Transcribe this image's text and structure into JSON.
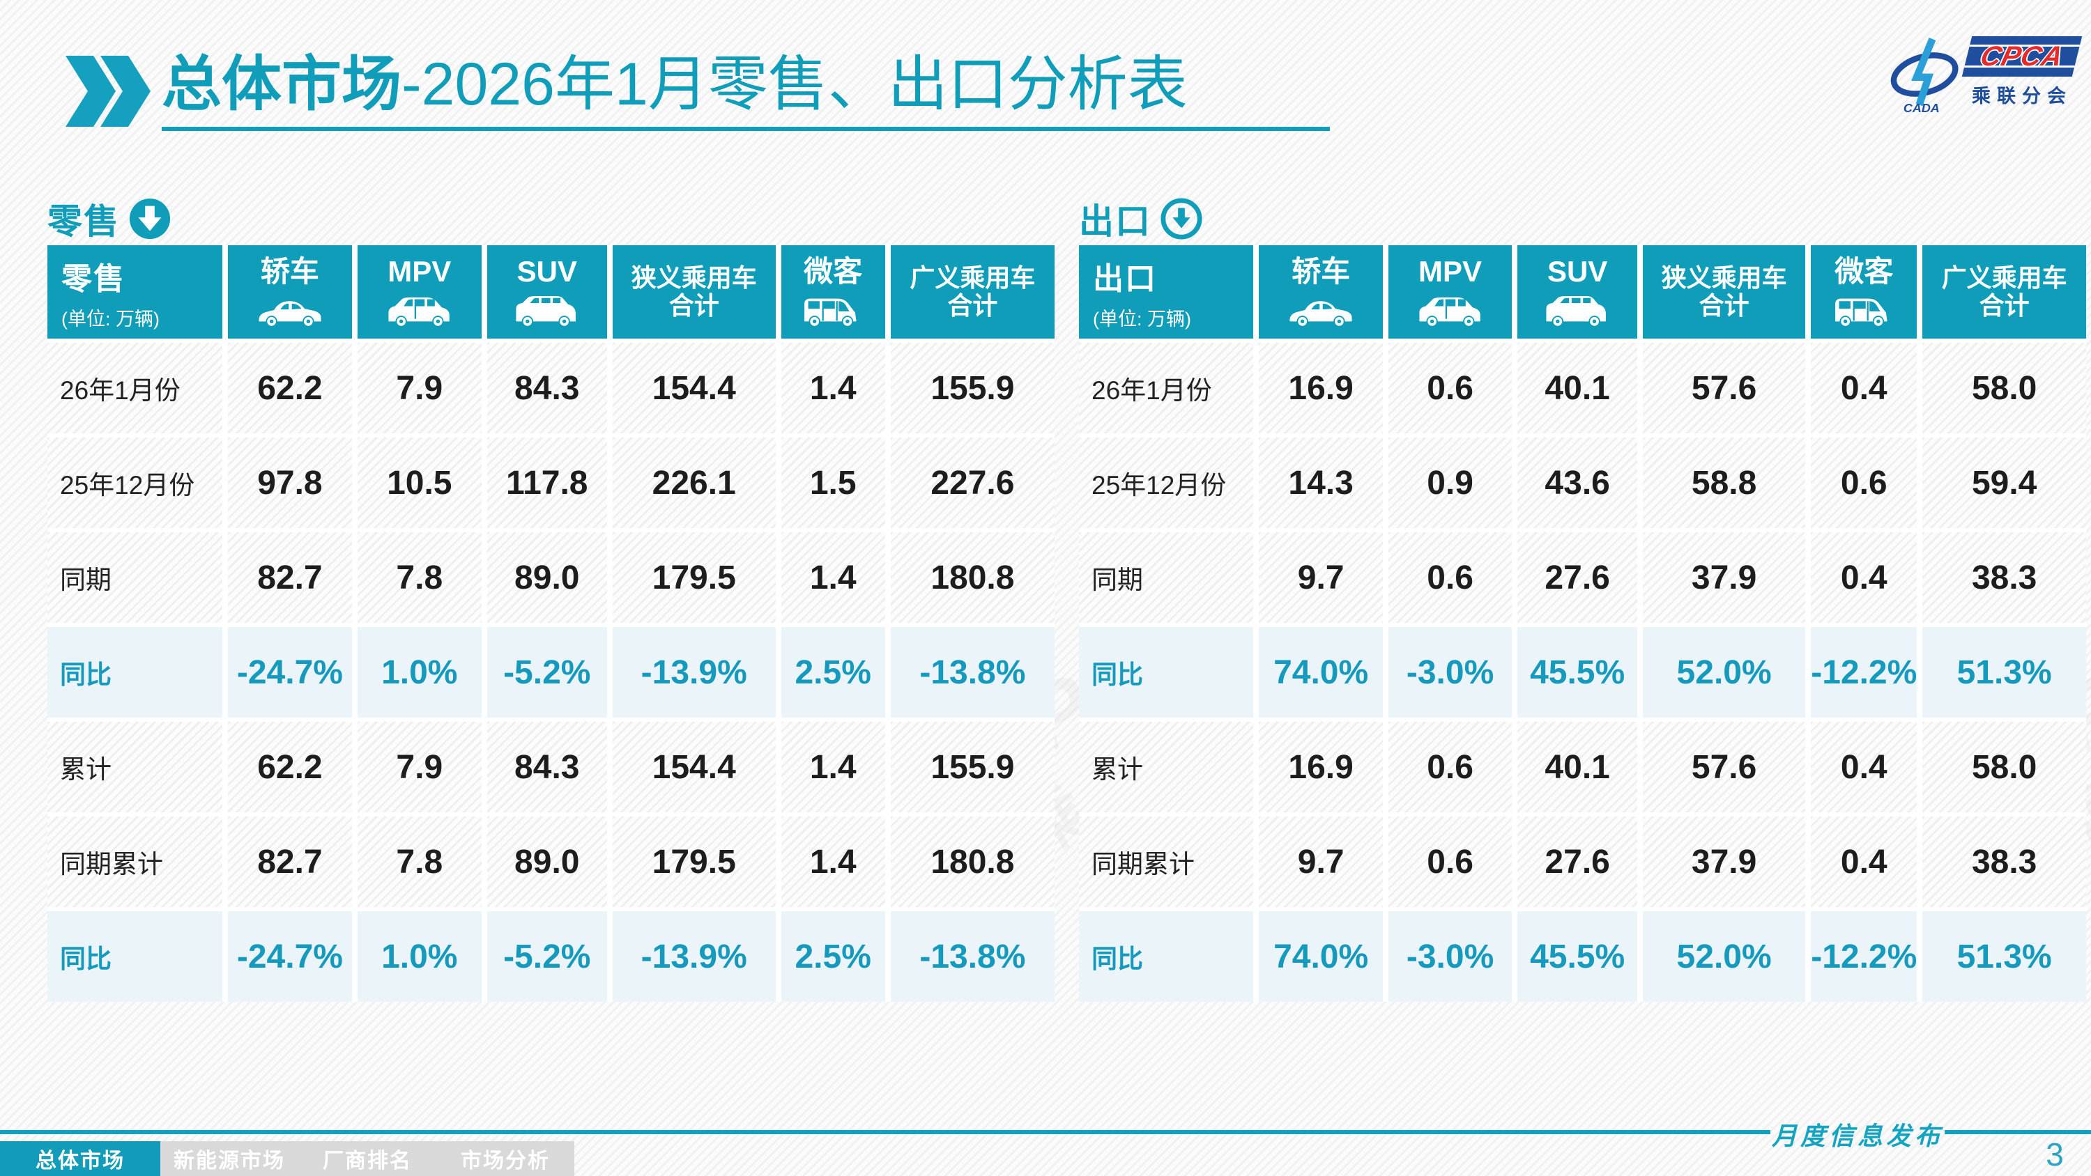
{
  "title": {
    "main": "总体市场",
    "rest": "-2026年1月零售、出口分析表"
  },
  "logo": {
    "org_abbr": "CPCA",
    "org_cn": "乘联分会",
    "assoc_abbr": "CADA"
  },
  "colors": {
    "accent": "#0f9db9",
    "highlight_bg": "#eaf4f9",
    "tab_inactive": "#d9d9d9",
    "logo_blue": "#1f4e9e",
    "logo_red": "#e32b2b"
  },
  "tables": [
    {
      "section_label": "零售",
      "section_icon": "circle-down-arrow-filled-icon",
      "title": "零售",
      "unit": "(单位: 万辆)",
      "columns": [
        {
          "key": "sedan",
          "label": "轿车",
          "icon": "sedan-icon"
        },
        {
          "key": "mpv",
          "label": "MPV",
          "icon": "mpv-icon"
        },
        {
          "key": "suv",
          "label": "SUV",
          "icon": "suv-icon"
        },
        {
          "key": "narrow-total",
          "label": "狭义乘用车\n合计",
          "icon": null
        },
        {
          "key": "microvan",
          "label": "微客",
          "icon": "microvan-icon"
        },
        {
          "key": "broad-total",
          "label": "广义乘用车\n合计",
          "icon": null
        }
      ],
      "rows": [
        {
          "label": "26年1月份",
          "highlight": false,
          "values": [
            "62.2",
            "7.9",
            "84.3",
            "154.4",
            "1.4",
            "155.9"
          ]
        },
        {
          "label": "25年12月份",
          "highlight": false,
          "values": [
            "97.8",
            "10.5",
            "117.8",
            "226.1",
            "1.5",
            "227.6"
          ]
        },
        {
          "label": "同期",
          "highlight": false,
          "values": [
            "82.7",
            "7.8",
            "89.0",
            "179.5",
            "1.4",
            "180.8"
          ]
        },
        {
          "label": "同比",
          "highlight": true,
          "values": [
            "-24.7%",
            "1.0%",
            "-5.2%",
            "-13.9%",
            "2.5%",
            "-13.8%"
          ]
        },
        {
          "label": "累计",
          "highlight": false,
          "values": [
            "62.2",
            "7.9",
            "84.3",
            "154.4",
            "1.4",
            "155.9"
          ]
        },
        {
          "label": "同期累计",
          "highlight": false,
          "values": [
            "82.7",
            "7.8",
            "89.0",
            "179.5",
            "1.4",
            "180.8"
          ]
        },
        {
          "label": "同比",
          "highlight": true,
          "values": [
            "-24.7%",
            "1.0%",
            "-5.2%",
            "-13.9%",
            "2.5%",
            "-13.8%"
          ]
        }
      ]
    },
    {
      "section_label": "出口",
      "section_icon": "circle-down-arrow-ring-icon",
      "title": "出口",
      "unit": "(单位: 万辆)",
      "columns": [
        {
          "key": "sedan",
          "label": "轿车",
          "icon": "sedan-icon"
        },
        {
          "key": "mpv",
          "label": "MPV",
          "icon": "mpv-icon"
        },
        {
          "key": "suv",
          "label": "SUV",
          "icon": "suv-icon"
        },
        {
          "key": "narrow-total",
          "label": "狭义乘用车\n合计",
          "icon": null
        },
        {
          "key": "microvan",
          "label": "微客",
          "icon": "microvan-icon"
        },
        {
          "key": "broad-total",
          "label": "广义乘用车\n合计",
          "icon": null
        }
      ],
      "rows": [
        {
          "label": "26年1月份",
          "highlight": false,
          "values": [
            "16.9",
            "0.6",
            "40.1",
            "57.6",
            "0.4",
            "58.0"
          ]
        },
        {
          "label": "25年12月份",
          "highlight": false,
          "values": [
            "14.3",
            "0.9",
            "43.6",
            "58.8",
            "0.6",
            "59.4"
          ]
        },
        {
          "label": "同期",
          "highlight": false,
          "values": [
            "9.7",
            "0.6",
            "27.6",
            "37.9",
            "0.4",
            "38.3"
          ]
        },
        {
          "label": "同比",
          "highlight": true,
          "values": [
            "74.0%",
            "-3.0%",
            "45.5%",
            "52.0%",
            "-12.2%",
            "51.3%"
          ]
        },
        {
          "label": "累计",
          "highlight": false,
          "values": [
            "16.9",
            "0.6",
            "40.1",
            "57.6",
            "0.4",
            "58.0"
          ]
        },
        {
          "label": "同期累计",
          "highlight": false,
          "values": [
            "9.7",
            "0.6",
            "27.6",
            "37.9",
            "0.4",
            "38.3"
          ]
        },
        {
          "label": "同比",
          "highlight": true,
          "values": [
            "74.0%",
            "-3.0%",
            "45.5%",
            "52.0%",
            "-12.2%",
            "51.3%"
          ]
        }
      ]
    }
  ],
  "footer": {
    "tabs": [
      "总体市场",
      "新能源市场",
      "厂商排名",
      "市场分析"
    ],
    "active_tab": 0,
    "release_label": "月度信息发布",
    "page_number": "3"
  }
}
